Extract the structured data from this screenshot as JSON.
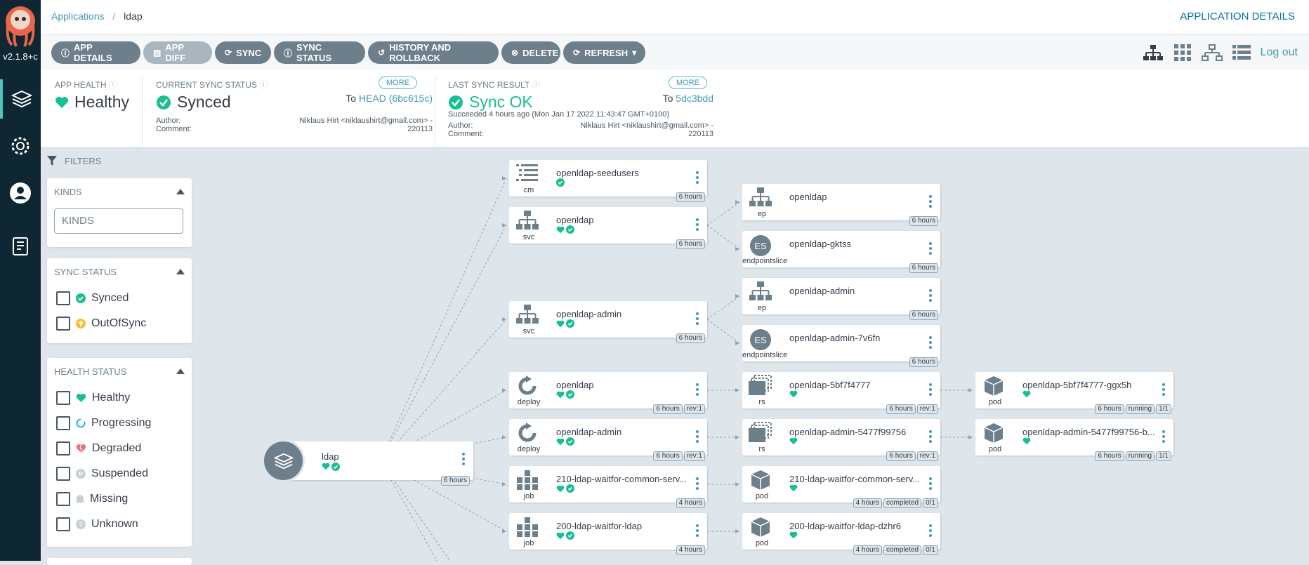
{
  "sidebar": {
    "version": "v2.1.8+c",
    "nav": [
      {
        "name": "applications-icon"
      },
      {
        "name": "settings-icon"
      },
      {
        "name": "user-info-icon"
      },
      {
        "name": "documentation-icon"
      }
    ]
  },
  "header": {
    "breadcrumb_root": "Applications",
    "breadcrumb_separator": "/",
    "breadcrumb_current": "ldap",
    "title": "APPLICATION DETAILS"
  },
  "toolbar": {
    "app_details": "APP DETAILS",
    "app_diff": "APP DIFF",
    "sync": "SYNC",
    "sync_status": "SYNC STATUS",
    "history": "HISTORY AND ROLLBACK",
    "delete": "DELETE",
    "refresh": "REFRESH",
    "logout": "Log out"
  },
  "status": {
    "health_label": "APP HEALTH",
    "health_value": "Healthy",
    "sync_label": "CURRENT SYNC STATUS",
    "sync_value": "Synced",
    "sync_more": "MORE",
    "sync_to": "To",
    "sync_revision": "HEAD (6bc615c)",
    "author_label": "Author:",
    "comment_label": "Comment:",
    "author_value": "Niklaus Hirt <niklaushirt@gmail.com> -",
    "comment_value": "220113",
    "last_label": "LAST SYNC RESULT",
    "last_value": "Sync OK",
    "last_more": "MORE",
    "last_to": "To",
    "last_revision": "5dc3bdd",
    "last_time": "Succeeded 4 hours ago (Mon Jan 17 2022 11:43:47 GMT+0100)",
    "last_author_label": "Author:",
    "last_comment_label": "Comment:",
    "last_author_value": "Niklaus Hirt <niklaushirt@gmail.com> -",
    "last_comment_value": "220113"
  },
  "filters": {
    "title": "FILTERS",
    "kinds_title": "KINDS",
    "kinds_placeholder": "KINDS",
    "sync_title": "SYNC STATUS",
    "sync_items": [
      "Synced",
      "OutOfSync"
    ],
    "health_title": "HEALTH STATUS",
    "health_items": [
      "Healthy",
      "Progressing",
      "Degraded",
      "Suspended",
      "Missing",
      "Unknown"
    ]
  },
  "graph": {
    "app": {
      "name": "ldap",
      "age": "6 hours"
    },
    "col1": [
      {
        "name": "openldap-seedusers",
        "kind": "cm",
        "tags": [
          "6 hours"
        ]
      },
      {
        "name": "openldap",
        "kind": "svc",
        "tags": [
          "6 hours"
        ]
      },
      {
        "name": "openldap-admin",
        "kind": "svc",
        "tags": [
          "6 hours"
        ]
      },
      {
        "name": "openldap",
        "kind": "deploy",
        "tags": [
          "6 hours",
          "rev:1"
        ]
      },
      {
        "name": "openldap-admin",
        "kind": "deploy",
        "tags": [
          "6 hours",
          "rev:1"
        ]
      },
      {
        "name": "210-ldap-waitfor-common-serv...",
        "kind": "job",
        "tags": [
          "4 hours"
        ]
      },
      {
        "name": "200-ldap-waitfor-ldap",
        "kind": "job",
        "tags": [
          "4 hours"
        ]
      }
    ],
    "col2": [
      {
        "name": "openldap",
        "kind": "ep",
        "tags": [
          "6 hours"
        ]
      },
      {
        "name": "openldap-gktss",
        "kind": "endpointslice",
        "tags": [
          "6 hours"
        ]
      },
      {
        "name": "openldap-admin",
        "kind": "ep",
        "tags": [
          "6 hours"
        ]
      },
      {
        "name": "openldap-admin-7v6fn",
        "kind": "endpointslice",
        "tags": [
          "6 hours"
        ]
      },
      {
        "name": "openldap-5bf7f4777",
        "kind": "rs",
        "tags": [
          "6 hours",
          "rev:1"
        ]
      },
      {
        "name": "openldap-admin-5477f99756",
        "kind": "rs",
        "tags": [
          "6 hours",
          "rev:1"
        ]
      },
      {
        "name": "210-ldap-waitfor-common-serv...",
        "kind": "pod",
        "tags": [
          "4 hours",
          "completed",
          "0/1"
        ]
      },
      {
        "name": "200-ldap-waitfor-ldap-dzhr6",
        "kind": "pod",
        "tags": [
          "4 hours",
          "completed",
          "0/1"
        ]
      }
    ],
    "col3": [
      {
        "name": "openldap-5bf7f4777-ggx5h",
        "kind": "pod",
        "tags": [
          "6 hours",
          "running",
          "1/1"
        ]
      },
      {
        "name": "openldap-admin-5477f99756-b...",
        "kind": "pod",
        "tags": [
          "6 hours",
          "running",
          "1/1"
        ]
      }
    ],
    "es_label": "ES"
  },
  "colors": {
    "healthy": "#18be94",
    "synced": "#18be94",
    "accent": "#4598b3",
    "outofsync": "#f4c030",
    "degraded": "#e96d76",
    "progressing": "#0dadea"
  }
}
